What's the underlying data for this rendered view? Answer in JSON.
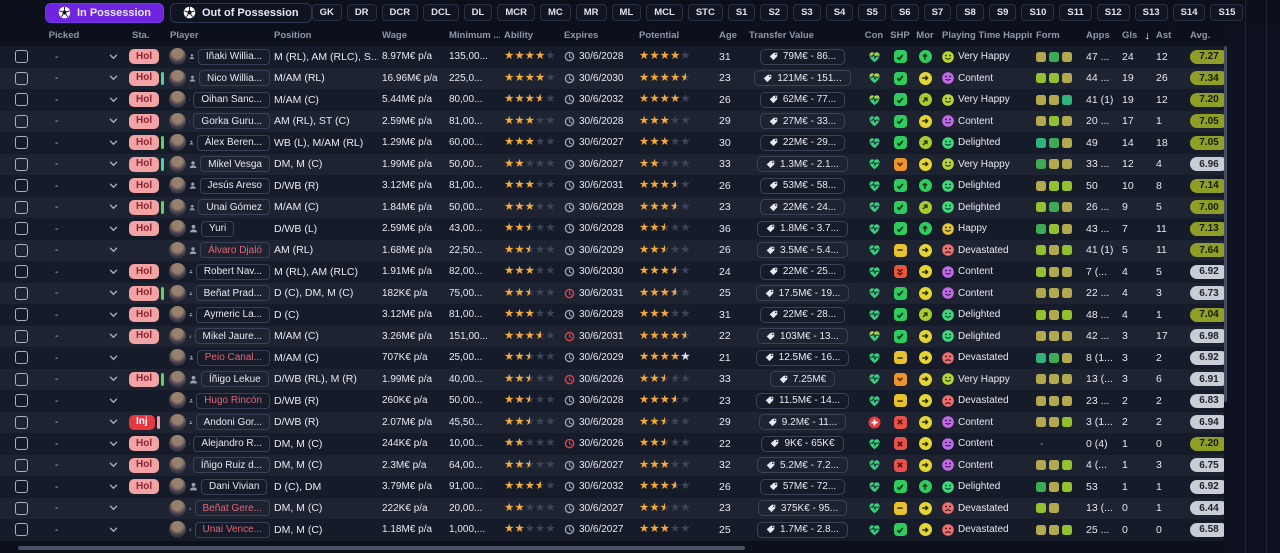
{
  "topbar": {
    "in_possession": "In Possession",
    "out_of_possession": "Out of Possession",
    "filters": [
      "GK",
      "DR",
      "DCR",
      "DCL",
      "DL",
      "MCR",
      "MC",
      "MR",
      "ML",
      "MCL",
      "STC",
      "S1",
      "S2",
      "S3",
      "S4",
      "S5",
      "S6",
      "S7",
      "S8",
      "S9",
      "S10",
      "S11",
      "S12",
      "S13",
      "S14",
      "S15"
    ]
  },
  "columns": [
    "Picked",
    "Sta.",
    "Player",
    "Position",
    "Wage",
    "Minimum ...",
    "Ability",
    "Expires",
    "Potential",
    "Age",
    "Transfer Value",
    "Con",
    "SHP",
    "Mor",
    "Playing Time Happin...",
    "Form",
    "Apps",
    "Gls",
    "Ast",
    "Avg."
  ],
  "sort": {
    "column": "Gls",
    "direction": "desc"
  },
  "picked_placeholder": "-",
  "colors": {
    "accent_purple": "#6f24e0",
    "status_hol_bg": "#f2a3a3",
    "status_hol_text": "#8c2330",
    "status_inj_bg": "#e5383f",
    "star_gold": "#f3a93c",
    "star_empty": "#3c4456",
    "star_white": "#dfe5ee",
    "red_name": "#e06678",
    "expire_red": "#e0434a",
    "expire_gray": "#99a1b3",
    "avg_good_bg": "#8f9e27",
    "avg_gray_bg": "#c9cdd5",
    "form": {
      "olive": "#b2a94f",
      "green": "#3cab54",
      "lime": "#93c02f",
      "teal": "#31b27c"
    },
    "bars": {
      "green": "#5ad45a",
      "teal": "#4ad4a0",
      "pink": "#f0a0a8"
    },
    "mood": {
      "very": "#b8d832",
      "content": "#c169e8",
      "delighted": "#3ddc7a",
      "happy": "#e8c53a",
      "devastated": "#f26d6d"
    },
    "shp": {
      "check": "#2ecc5f",
      "down": "#f0932b",
      "minus": "#e8c22e",
      "ddown": "#e8563a",
      "x": "#e8504a"
    },
    "mor": {
      "up": "#2ecc5f",
      "upright": "#a8cc2e",
      "right": "#e3d535"
    },
    "con": {
      "green": "#35d07f",
      "mixed_top": "#cdd53a",
      "red": "#e5383f"
    }
  },
  "rows": [
    {
      "sta": "Hol",
      "bar": "",
      "name": "Iñaki Willia...",
      "nameRed": false,
      "pos": "M (RL), AM (RLC), S...",
      "wage": "8.97M€ p/a",
      "min": "135,00...",
      "abil": [
        4,
        0
      ],
      "exp": "30/6/2028",
      "expRed": false,
      "pot": [
        4,
        0,
        0
      ],
      "age": "31",
      "value": "79M€ - 86...",
      "con": "mixed",
      "shp": "check",
      "mor": "up",
      "mood": "very",
      "happiness": "Very Happy",
      "form": [
        "olive",
        "green",
        "olive"
      ],
      "apps": "47 ...",
      "gls": "24",
      "ast": "12",
      "avg": "7.27",
      "avgGray": false
    },
    {
      "sta": "Hol",
      "bar": "teal",
      "name": "Nico Willia...",
      "nameRed": false,
      "pos": "M/AM (RL)",
      "wage": "16.96M€ p/a",
      "min": "225,0...",
      "abil": [
        4,
        0
      ],
      "exp": "30/6/2030",
      "expRed": false,
      "pot": [
        4,
        1,
        0
      ],
      "age": "23",
      "value": "121M€ - 151...",
      "con": "mixed",
      "shp": "check",
      "mor": "right",
      "mood": "content",
      "happiness": "Content",
      "form": [
        "lime",
        "lime",
        "olive"
      ],
      "apps": "44 ...",
      "gls": "19",
      "ast": "26",
      "avg": "7.34",
      "avgGray": false
    },
    {
      "sta": "Hol",
      "bar": "",
      "name": "Oihan Sanc...",
      "nameRed": false,
      "pos": "M/AM (C)",
      "wage": "5.44M€ p/a",
      "min": "80,00...",
      "abil": [
        3,
        1
      ],
      "exp": "30/6/2032",
      "expRed": false,
      "pot": [
        4,
        0,
        0
      ],
      "age": "26",
      "value": "62M€ - 77...",
      "con": "mixed",
      "shp": "check",
      "mor": "upright",
      "mood": "very",
      "happiness": "Very Happy",
      "form": [
        "olive",
        "olive",
        "teal"
      ],
      "apps": "41 (1)",
      "gls": "19",
      "ast": "12",
      "avg": "7.20",
      "avgGray": false
    },
    {
      "sta": "Hol",
      "bar": "",
      "name": "Gorka Guru...",
      "nameRed": false,
      "pos": "AM (RL), ST (C)",
      "wage": "2.59M€ p/a",
      "min": "81,00...",
      "abil": [
        3,
        0
      ],
      "exp": "30/6/2028",
      "expRed": false,
      "pot": [
        3,
        0,
        0
      ],
      "age": "29",
      "value": "27M€ - 33...",
      "con": "green",
      "shp": "check",
      "mor": "right",
      "mood": "content",
      "happiness": "Content",
      "form": [
        "olive",
        "lime",
        "olive"
      ],
      "apps": "20 ...",
      "gls": "17",
      "ast": "1",
      "avg": "7.05",
      "avgGray": false
    },
    {
      "sta": "Hol",
      "bar": "green",
      "name": "Álex Beren...",
      "nameRed": false,
      "pos": "WB (L), M/AM (RL)",
      "wage": "1.29M€ p/a",
      "min": "60,00...",
      "abil": [
        3,
        0
      ],
      "exp": "30/6/2027",
      "expRed": false,
      "pot": [
        3,
        0,
        0
      ],
      "age": "30",
      "value": "22M€ - 29...",
      "con": "green",
      "shp": "check",
      "mor": "upright",
      "mood": "delighted",
      "happiness": "Delighted",
      "form": [
        "teal",
        "green",
        "olive"
      ],
      "apps": "49",
      "gls": "14",
      "ast": "18",
      "avg": "7.05",
      "avgGray": false
    },
    {
      "sta": "Hol",
      "bar": "teal",
      "name": "Mikel Vesga",
      "nameRed": false,
      "pos": "DM, M (C)",
      "wage": "1.99M€ p/a",
      "min": "50,00...",
      "abil": [
        2,
        0
      ],
      "exp": "30/6/2027",
      "expRed": false,
      "pot": [
        2,
        0,
        0
      ],
      "age": "33",
      "value": "1.3M€ - 2.1...",
      "con": "green",
      "shp": "down",
      "mor": "right",
      "mood": "very",
      "happiness": "Very Happy",
      "form": [
        "green",
        "olive",
        "olive"
      ],
      "apps": "33 ...",
      "gls": "12",
      "ast": "4",
      "avg": "6.96",
      "avgGray": true
    },
    {
      "sta": "Hol",
      "bar": "",
      "name": "Jesús Areso",
      "nameRed": false,
      "pos": "D/WB (R)",
      "wage": "3.12M€ p/a",
      "min": "81,00...",
      "abil": [
        3,
        0
      ],
      "exp": "30/6/2031",
      "expRed": false,
      "pot": [
        3,
        1,
        0
      ],
      "age": "26",
      "value": "53M€ - 58...",
      "con": "green",
      "shp": "check",
      "mor": "up",
      "mood": "delighted",
      "happiness": "Delighted",
      "form": [
        "olive",
        "lime",
        "lime"
      ],
      "apps": "50",
      "gls": "10",
      "ast": "8",
      "avg": "7.14",
      "avgGray": false
    },
    {
      "sta": "Hol",
      "bar": "green",
      "name": "Unai Gómez",
      "nameRed": false,
      "pos": "M/AM (C)",
      "wage": "1.84M€ p/a",
      "min": "50,00...",
      "abil": [
        3,
        0
      ],
      "exp": "30/6/2028",
      "expRed": false,
      "pot": [
        3,
        1,
        0
      ],
      "age": "23",
      "value": "22M€ - 24...",
      "con": "green",
      "shp": "check",
      "mor": "upright",
      "mood": "delighted",
      "happiness": "Delighted",
      "form": [
        "lime",
        "green",
        "olive"
      ],
      "apps": "26 ...",
      "gls": "9",
      "ast": "5",
      "avg": "7.00",
      "avgGray": false
    },
    {
      "sta": "Hol",
      "bar": "",
      "name": "Yuri",
      "nameRed": false,
      "pos": "D/WB (L)",
      "wage": "2.59M€ p/a",
      "min": "43,00...",
      "abil": [
        2,
        1
      ],
      "exp": "30/6/2028",
      "expRed": false,
      "pot": [
        2,
        1,
        0
      ],
      "age": "36",
      "value": "1.8M€ - 3.7...",
      "con": "green",
      "shp": "check",
      "mor": "up",
      "mood": "happy",
      "happiness": "Happy",
      "form": [
        "green",
        "lime",
        "olive"
      ],
      "apps": "43 ...",
      "gls": "7",
      "ast": "11",
      "avg": "7.13",
      "avgGray": false
    },
    {
      "sta": "",
      "bar": "",
      "name": "Álvaro Djaló",
      "nameRed": true,
      "pos": "AM (RL)",
      "wage": "1.68M€ p/a",
      "min": "22,50...",
      "abil": [
        2,
        1
      ],
      "exp": "30/6/2029",
      "expRed": false,
      "pot": [
        2,
        1,
        0
      ],
      "age": "26",
      "value": "3.5M€ - 5.4...",
      "con": "green",
      "shp": "minus",
      "mor": "right",
      "mood": "devastated",
      "happiness": "Devastated",
      "form": [
        "lime",
        "olive",
        "lime"
      ],
      "apps": "41 (1)",
      "gls": "5",
      "ast": "11",
      "avg": "7.64",
      "avgGray": false
    },
    {
      "sta": "Hol",
      "bar": "",
      "name": "Robert Nav...",
      "nameRed": false,
      "pos": "M (RL), AM (RLC)",
      "wage": "1.91M€ p/a",
      "min": "82,00...",
      "abil": [
        3,
        0
      ],
      "exp": "30/6/2030",
      "expRed": false,
      "pot": [
        3,
        1,
        0
      ],
      "age": "24",
      "value": "22M€ - 25...",
      "con": "green",
      "shp": "ddown",
      "mor": "right",
      "mood": "content",
      "happiness": "Content",
      "form": [
        "lime",
        "olive",
        "olive"
      ],
      "apps": "7 (...",
      "gls": "4",
      "ast": "5",
      "avg": "6.92",
      "avgGray": true
    },
    {
      "sta": "Hol",
      "bar": "green",
      "name": "Beñat Prad...",
      "nameRed": false,
      "pos": "D (C), DM, M (C)",
      "wage": "182K€ p/a",
      "min": "75,00...",
      "abil": [
        2,
        1
      ],
      "exp": "30/6/2031",
      "expRed": true,
      "pot": [
        3,
        1,
        0
      ],
      "age": "25",
      "value": "17.5M€ - 19...",
      "con": "green",
      "shp": "check",
      "mor": "right",
      "mood": "content",
      "happiness": "Content",
      "form": [
        "olive",
        "olive",
        "olive"
      ],
      "apps": "22 ...",
      "gls": "4",
      "ast": "3",
      "avg": "6.73",
      "avgGray": true
    },
    {
      "sta": "Hol",
      "bar": "",
      "name": "Aymeric La...",
      "nameRed": false,
      "pos": "D (C)",
      "wage": "3.12M€ p/a",
      "min": "81,00...",
      "abil": [
        3,
        0
      ],
      "exp": "30/6/2028",
      "expRed": false,
      "pot": [
        3,
        0,
        0
      ],
      "age": "31",
      "value": "22M€ - 28...",
      "con": "green",
      "shp": "check",
      "mor": "upright",
      "mood": "delighted",
      "happiness": "Delighted",
      "form": [
        "lime",
        "olive",
        "lime"
      ],
      "apps": "48 ...",
      "gls": "4",
      "ast": "1",
      "avg": "7.04",
      "avgGray": false
    },
    {
      "sta": "Hol",
      "bar": "",
      "name": "Mikel Jaure...",
      "nameRed": false,
      "pos": "M/AM (C)",
      "wage": "3.26M€ p/a",
      "min": "151,00...",
      "abil": [
        3,
        1
      ],
      "exp": "30/6/2031",
      "expRed": true,
      "pot": [
        4,
        1,
        0
      ],
      "age": "22",
      "value": "103M€ - 13...",
      "con": "mixed",
      "shp": "check",
      "mor": "right",
      "mood": "delighted",
      "happiness": "Delighted",
      "form": [
        "olive",
        "olive",
        "olive"
      ],
      "apps": "42 ...",
      "gls": "3",
      "ast": "17",
      "avg": "6.98",
      "avgGray": true
    },
    {
      "sta": "",
      "bar": "",
      "name": "Peio Canal...",
      "nameRed": true,
      "pos": "M/AM (C)",
      "wage": "707K€ p/a",
      "min": "25,00...",
      "abil": [
        2,
        1
      ],
      "exp": "30/6/2029",
      "expRed": false,
      "pot": [
        4,
        0,
        1
      ],
      "age": "21",
      "value": "12.5M€ - 16...",
      "con": "green",
      "shp": "minus",
      "mor": "right",
      "mood": "devastated",
      "happiness": "Devastated",
      "form": [
        "teal",
        "green",
        "olive"
      ],
      "apps": "8 (1...",
      "gls": "3",
      "ast": "2",
      "avg": "6.92",
      "avgGray": true
    },
    {
      "sta": "Hol",
      "bar": "green",
      "name": "Íñigo Lekue",
      "nameRed": false,
      "pos": "D/WB (RL), M (R)",
      "wage": "1.99M€ p/a",
      "min": "40,00...",
      "abil": [
        2,
        1
      ],
      "exp": "30/6/2026",
      "expRed": true,
      "pot": [
        2,
        1,
        0
      ],
      "age": "33",
      "value": "7.25M€",
      "con": "green",
      "shp": "down",
      "mor": "right",
      "mood": "very",
      "happiness": "Very Happy",
      "form": [
        "olive",
        "olive",
        "olive"
      ],
      "apps": "13 (...",
      "gls": "3",
      "ast": "6",
      "avg": "6.91",
      "avgGray": true
    },
    {
      "sta": "",
      "bar": "",
      "name": "Hugo Rincón",
      "nameRed": true,
      "pos": "D/WB (R)",
      "wage": "260K€ p/a",
      "min": "50,00...",
      "abil": [
        2,
        1
      ],
      "exp": "30/6/2028",
      "expRed": false,
      "pot": [
        3,
        1,
        0
      ],
      "age": "23",
      "value": "11.5M€ - 14...",
      "con": "green",
      "shp": "minus",
      "mor": "right",
      "mood": "devastated",
      "happiness": "Devastated",
      "form": [
        "olive",
        "olive",
        "olive"
      ],
      "apps": "23 ...",
      "gls": "2",
      "ast": "2",
      "avg": "6.83",
      "avgGray": true
    },
    {
      "sta": "Inj",
      "bar": "pink",
      "name": "Andoni Gor...",
      "nameRed": false,
      "pos": "D/WB (R)",
      "wage": "2.07M€ p/a",
      "min": "45,50...",
      "abil": [
        2,
        1
      ],
      "exp": "30/6/2028",
      "expRed": false,
      "pot": [
        2,
        1,
        0
      ],
      "age": "29",
      "value": "9.2M€ - 11...",
      "con": "redcross",
      "shp": "x",
      "mor": "right",
      "mood": "content",
      "happiness": "Content",
      "form": [
        "olive",
        "olive",
        "lime"
      ],
      "apps": "3 (1...",
      "gls": "2",
      "ast": "2",
      "avg": "6.94",
      "avgGray": true
    },
    {
      "sta": "Hol",
      "bar": "",
      "name": "Alejandro R...",
      "nameRed": false,
      "pos": "DM, M (C)",
      "wage": "244K€ p/a",
      "min": "10,00...",
      "abil": [
        2,
        0
      ],
      "exp": "30/6/2026",
      "expRed": true,
      "pot": [
        2,
        1,
        0
      ],
      "age": "22",
      "value": "9K€ - 65K€",
      "con": "green",
      "shp": "x",
      "mor": "right",
      "mood": "content",
      "happiness": "Content",
      "form": [],
      "apps": "0 (4)",
      "gls": "1",
      "ast": "0",
      "avg": "7.20",
      "avgGray": false
    },
    {
      "sta": "Hol",
      "bar": "",
      "name": "Íñigo Ruiz d...",
      "nameRed": false,
      "pos": "DM, M (C)",
      "wage": "2.3M€ p/a",
      "min": "64,00...",
      "abil": [
        2,
        1
      ],
      "exp": "30/6/2027",
      "expRed": false,
      "pot": [
        3,
        0,
        0
      ],
      "age": "32",
      "value": "5.2M€ - 7.2...",
      "con": "green",
      "shp": "x",
      "mor": "right",
      "mood": "content",
      "happiness": "Content",
      "form": [
        "olive",
        "olive",
        "lime"
      ],
      "apps": "4 (...",
      "gls": "1",
      "ast": "3",
      "avg": "6.75",
      "avgGray": true
    },
    {
      "sta": "Hol",
      "bar": "",
      "name": "Dani Vivian",
      "nameRed": false,
      "pos": "D (C), DM",
      "wage": "3.79M€ p/a",
      "min": "91,00...",
      "abil": [
        3,
        1
      ],
      "exp": "30/6/2032",
      "expRed": false,
      "pot": [
        3,
        1,
        0
      ],
      "age": "26",
      "value": "57M€ - 72...",
      "con": "green",
      "shp": "check",
      "mor": "up",
      "mood": "delighted",
      "happiness": "Delighted",
      "form": [
        "green",
        "olive",
        "lime"
      ],
      "apps": "53",
      "gls": "1",
      "ast": "1",
      "avg": "6.92",
      "avgGray": true
    },
    {
      "sta": "",
      "bar": "",
      "name": "Beñat Gere...",
      "nameRed": true,
      "pos": "DM, M (C)",
      "wage": "222K€ p/a",
      "min": "20,00...",
      "abil": [
        2,
        0
      ],
      "exp": "30/6/2027",
      "expRed": false,
      "pot": [
        2,
        1,
        0
      ],
      "age": "23",
      "value": "375K€ - 95...",
      "con": "green",
      "shp": "minus",
      "mor": "right",
      "mood": "devastated",
      "happiness": "Devastated",
      "form": [
        "lime",
        "olive"
      ],
      "apps": "13 (...",
      "gls": "0",
      "ast": "1",
      "avg": "6.44",
      "avgGray": true
    },
    {
      "sta": "",
      "bar": "",
      "name": "Unai Vence...",
      "nameRed": true,
      "pos": "DM, M (C)",
      "wage": "1.18M€ p/a",
      "min": "1,000,...",
      "abil": [
        2,
        0
      ],
      "exp": "30/6/2027",
      "expRed": false,
      "pot": [
        3,
        0,
        0
      ],
      "age": "25",
      "value": "1.7M€ - 2.8...",
      "con": "green",
      "shp": "check",
      "mor": "right",
      "mood": "devastated",
      "happiness": "Devastated",
      "form": [
        "olive",
        "olive",
        "lime"
      ],
      "apps": "25 ...",
      "gls": "0",
      "ast": "0",
      "avg": "6.58",
      "avgGray": true
    }
  ]
}
